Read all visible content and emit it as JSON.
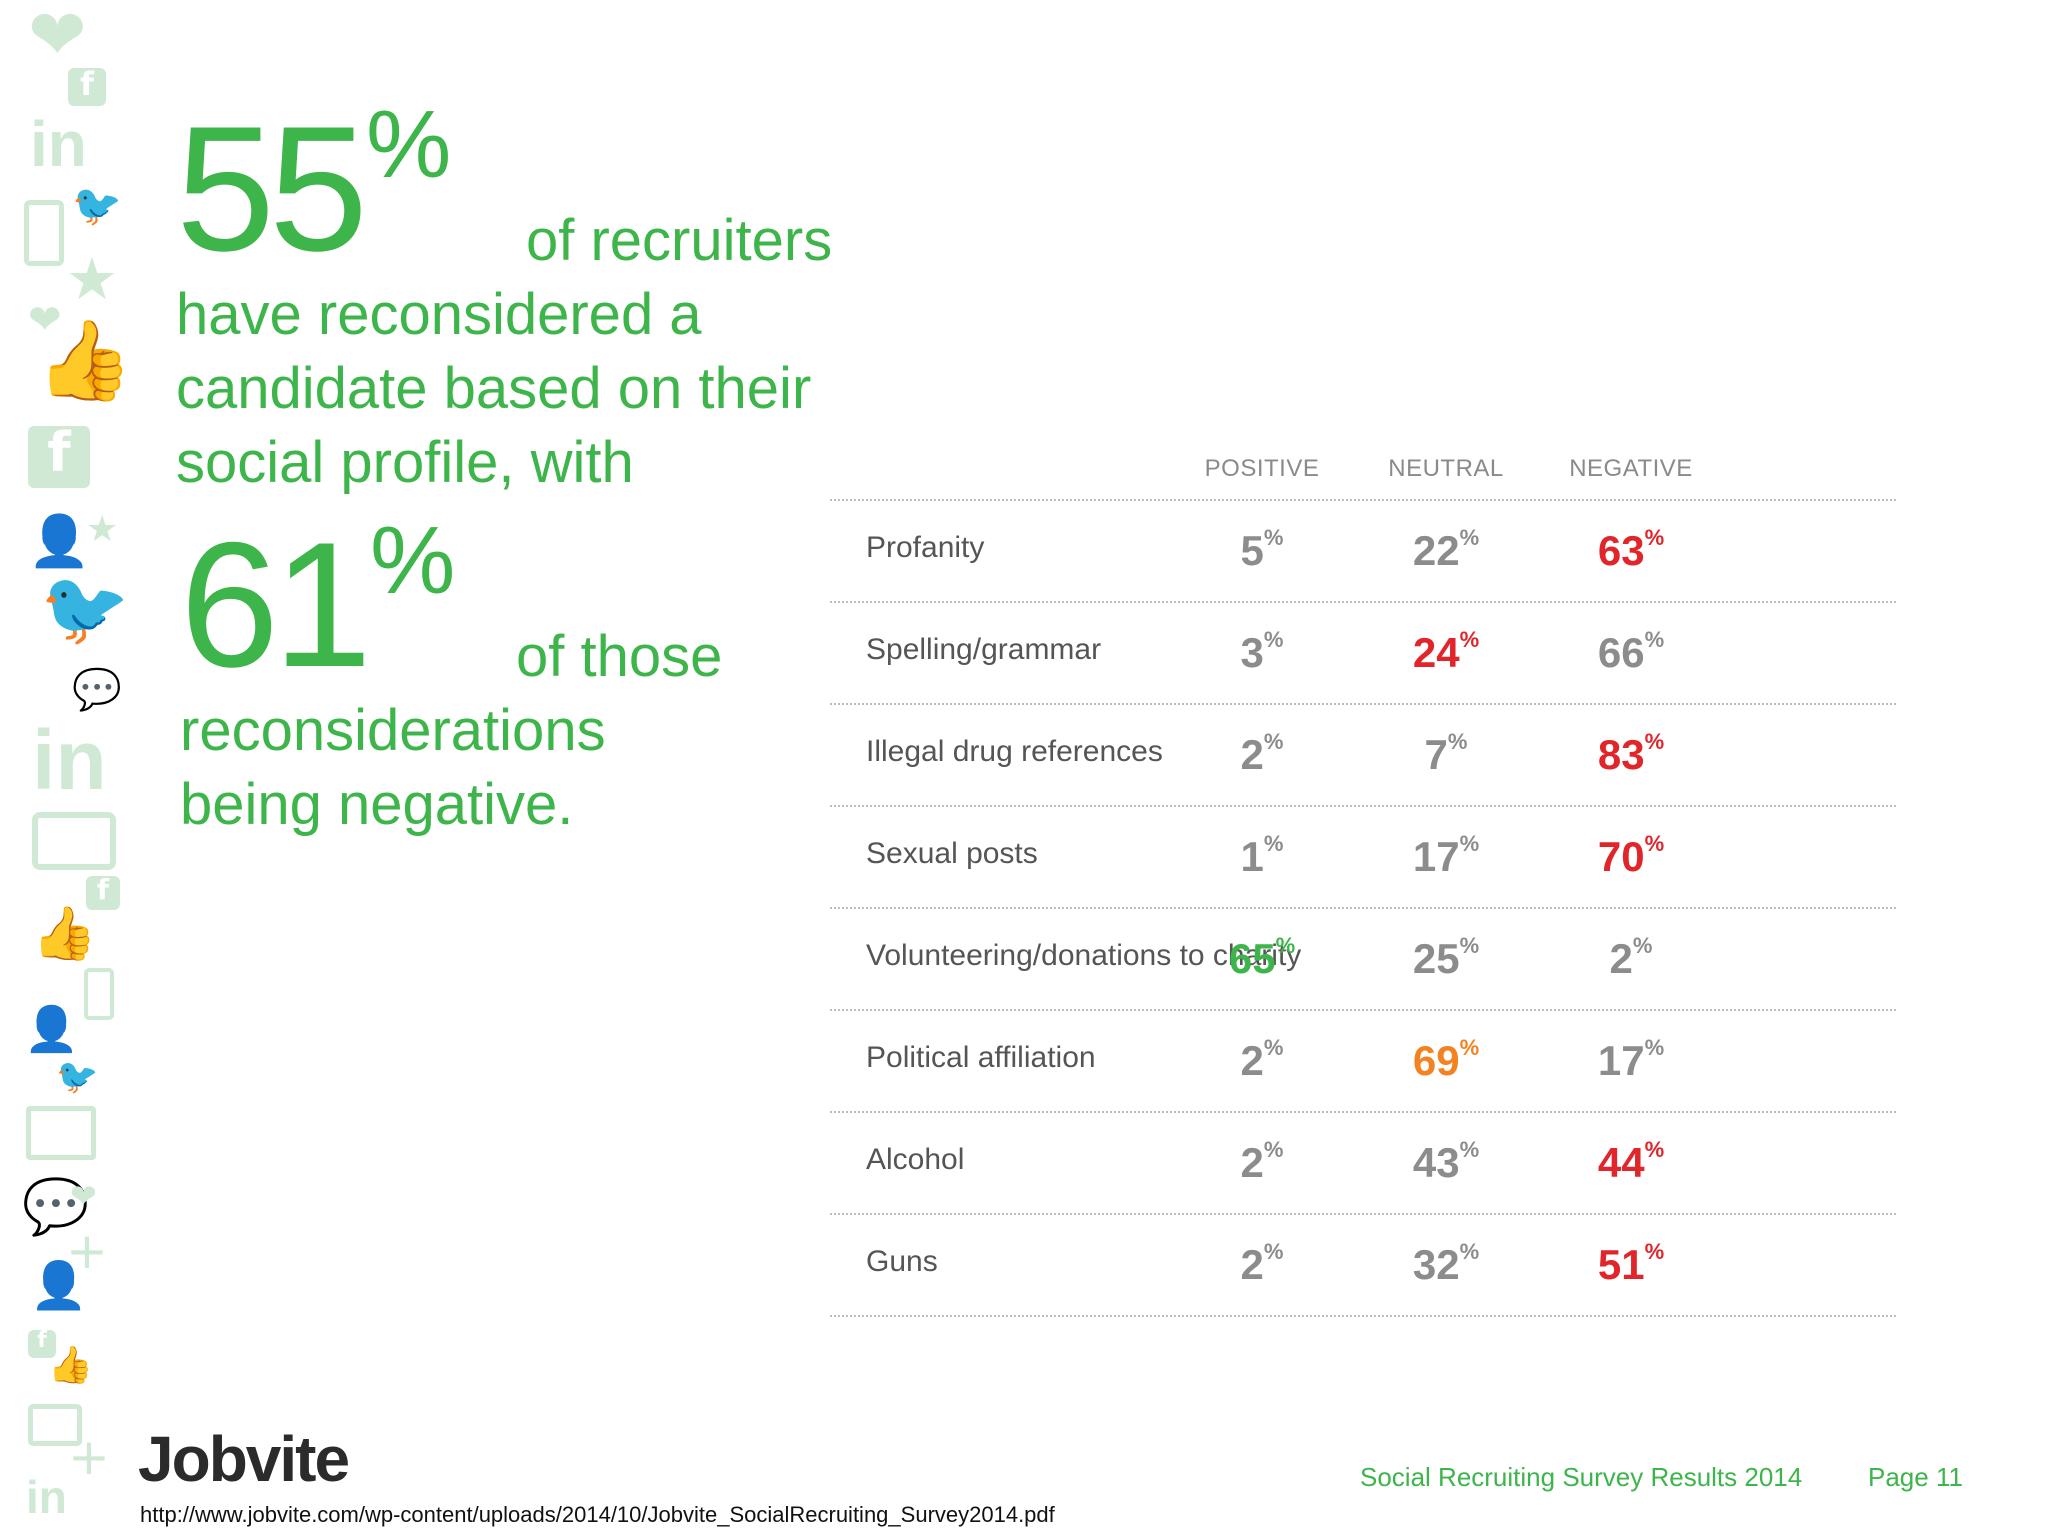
{
  "headline": {
    "stat1_number": "55",
    "stat1_percent": "%",
    "stat1_suffix": "of recruiters",
    "line2": "have reconsidered a",
    "line3": "candidate based on their",
    "line4": "social profile, with",
    "stat2_number": "61",
    "stat2_percent": "%",
    "stat2_suffix": "of those",
    "line6": "reconsiderations",
    "line7": "being negative."
  },
  "table": {
    "headers": [
      "POSITIVE",
      "NEUTRAL",
      "NEGATIVE"
    ],
    "unit": "%",
    "rows": [
      {
        "label": "Profanity",
        "values": [
          "5",
          "22",
          "63"
        ]
      },
      {
        "label": "Spelling/grammar",
        "values": [
          "3",
          "24",
          "66"
        ]
      },
      {
        "label": "Illegal drug references",
        "values": [
          "2",
          "7",
          "83"
        ]
      },
      {
        "label": "Sexual posts",
        "values": [
          "1",
          "17",
          "70"
        ]
      },
      {
        "label": "Volunteering/donations to charity",
        "values": [
          "65",
          "25",
          "2"
        ]
      },
      {
        "label": "Political affiliation",
        "values": [
          "2",
          "69",
          "17"
        ]
      },
      {
        "label": "Alcohol",
        "values": [
          "2",
          "43",
          "44"
        ]
      },
      {
        "label": "Guns",
        "values": [
          "2",
          "32",
          "51"
        ]
      }
    ],
    "highlight_colors": [
      "",
      "",
      "#e0262b",
      "",
      "#e0262b",
      "",
      "",
      "",
      "#e0262b",
      "",
      "",
      "#e0262b",
      "#3db54a",
      "",
      "",
      "",
      "#f58220",
      "",
      "",
      "",
      "#e0262b",
      "",
      "",
      "#e0262b"
    ]
  },
  "colors": {
    "green": "#3db54a",
    "red": "#e0262b",
    "orange": "#f58220",
    "gray": "#8c8c8c",
    "icon_tint": "#cfe9d4"
  },
  "footer": {
    "logo": "Jobvite",
    "survey": "Social Recruiting Survey Results 2014",
    "page": "Page 11",
    "url": "http://www.jobvite.com/wp-content/uploads/2014/10/Jobvite_SocialRecruiting_Survey2014.pdf"
  },
  "decor_icons": [
    "heart-icon",
    "facebook-icon",
    "linkedin-icon",
    "phone-icon",
    "twitter-icon",
    "star-icon",
    "heart-icon",
    "thumbs-up-icon",
    "facebook-icon",
    "person-icon",
    "star-icon",
    "twitter-icon",
    "chat-icon",
    "linkedin-icon",
    "tablet-icon",
    "facebook-icon",
    "thumbs-up-icon",
    "phone-icon",
    "person-icon",
    "twitter-icon",
    "laptop-icon",
    "chat-icon",
    "heart-icon",
    "person-icon",
    "plus-icon",
    "facebook-icon",
    "thumbs-up-icon",
    "tablet-icon",
    "plus-icon",
    "linkedin-icon"
  ]
}
